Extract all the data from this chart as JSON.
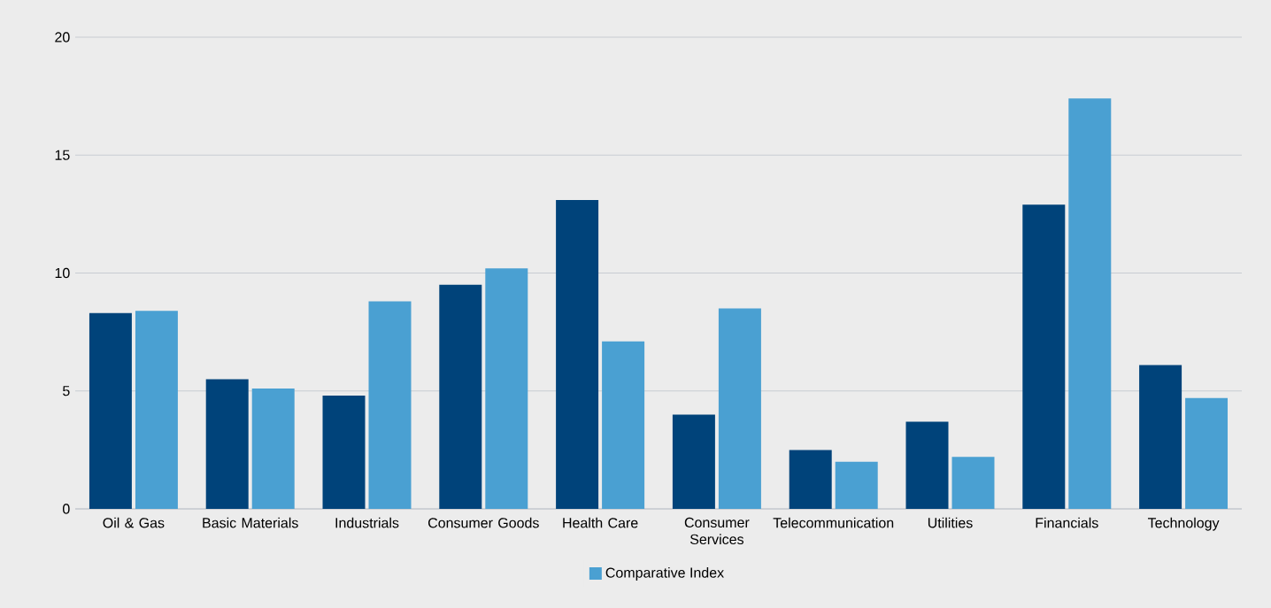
{
  "chart_data": {
    "type": "bar",
    "categories": [
      "Oil & Gas",
      "Basic Materials",
      "Industrials",
      "Consumer Goods",
      "Health Care",
      "Consumer Services",
      "Telecommunication",
      "Utilities",
      "Financials",
      "Technology"
    ],
    "series": [
      {
        "color": "#00437a",
        "values": [
          8.3,
          5.5,
          4.8,
          9.5,
          13.1,
          4.0,
          2.5,
          3.7,
          12.9,
          6.1
        ]
      },
      {
        "name": "Comparative Index",
        "color": "#4aa0d2",
        "values": [
          8.4,
          5.1,
          8.8,
          10.2,
          7.1,
          8.5,
          2.0,
          2.2,
          17.4,
          4.7
        ]
      }
    ],
    "ylim": [
      0,
      20
    ],
    "yticks": [
      0,
      5,
      10,
      15,
      20
    ],
    "grid": "y",
    "legend": "bottom"
  }
}
